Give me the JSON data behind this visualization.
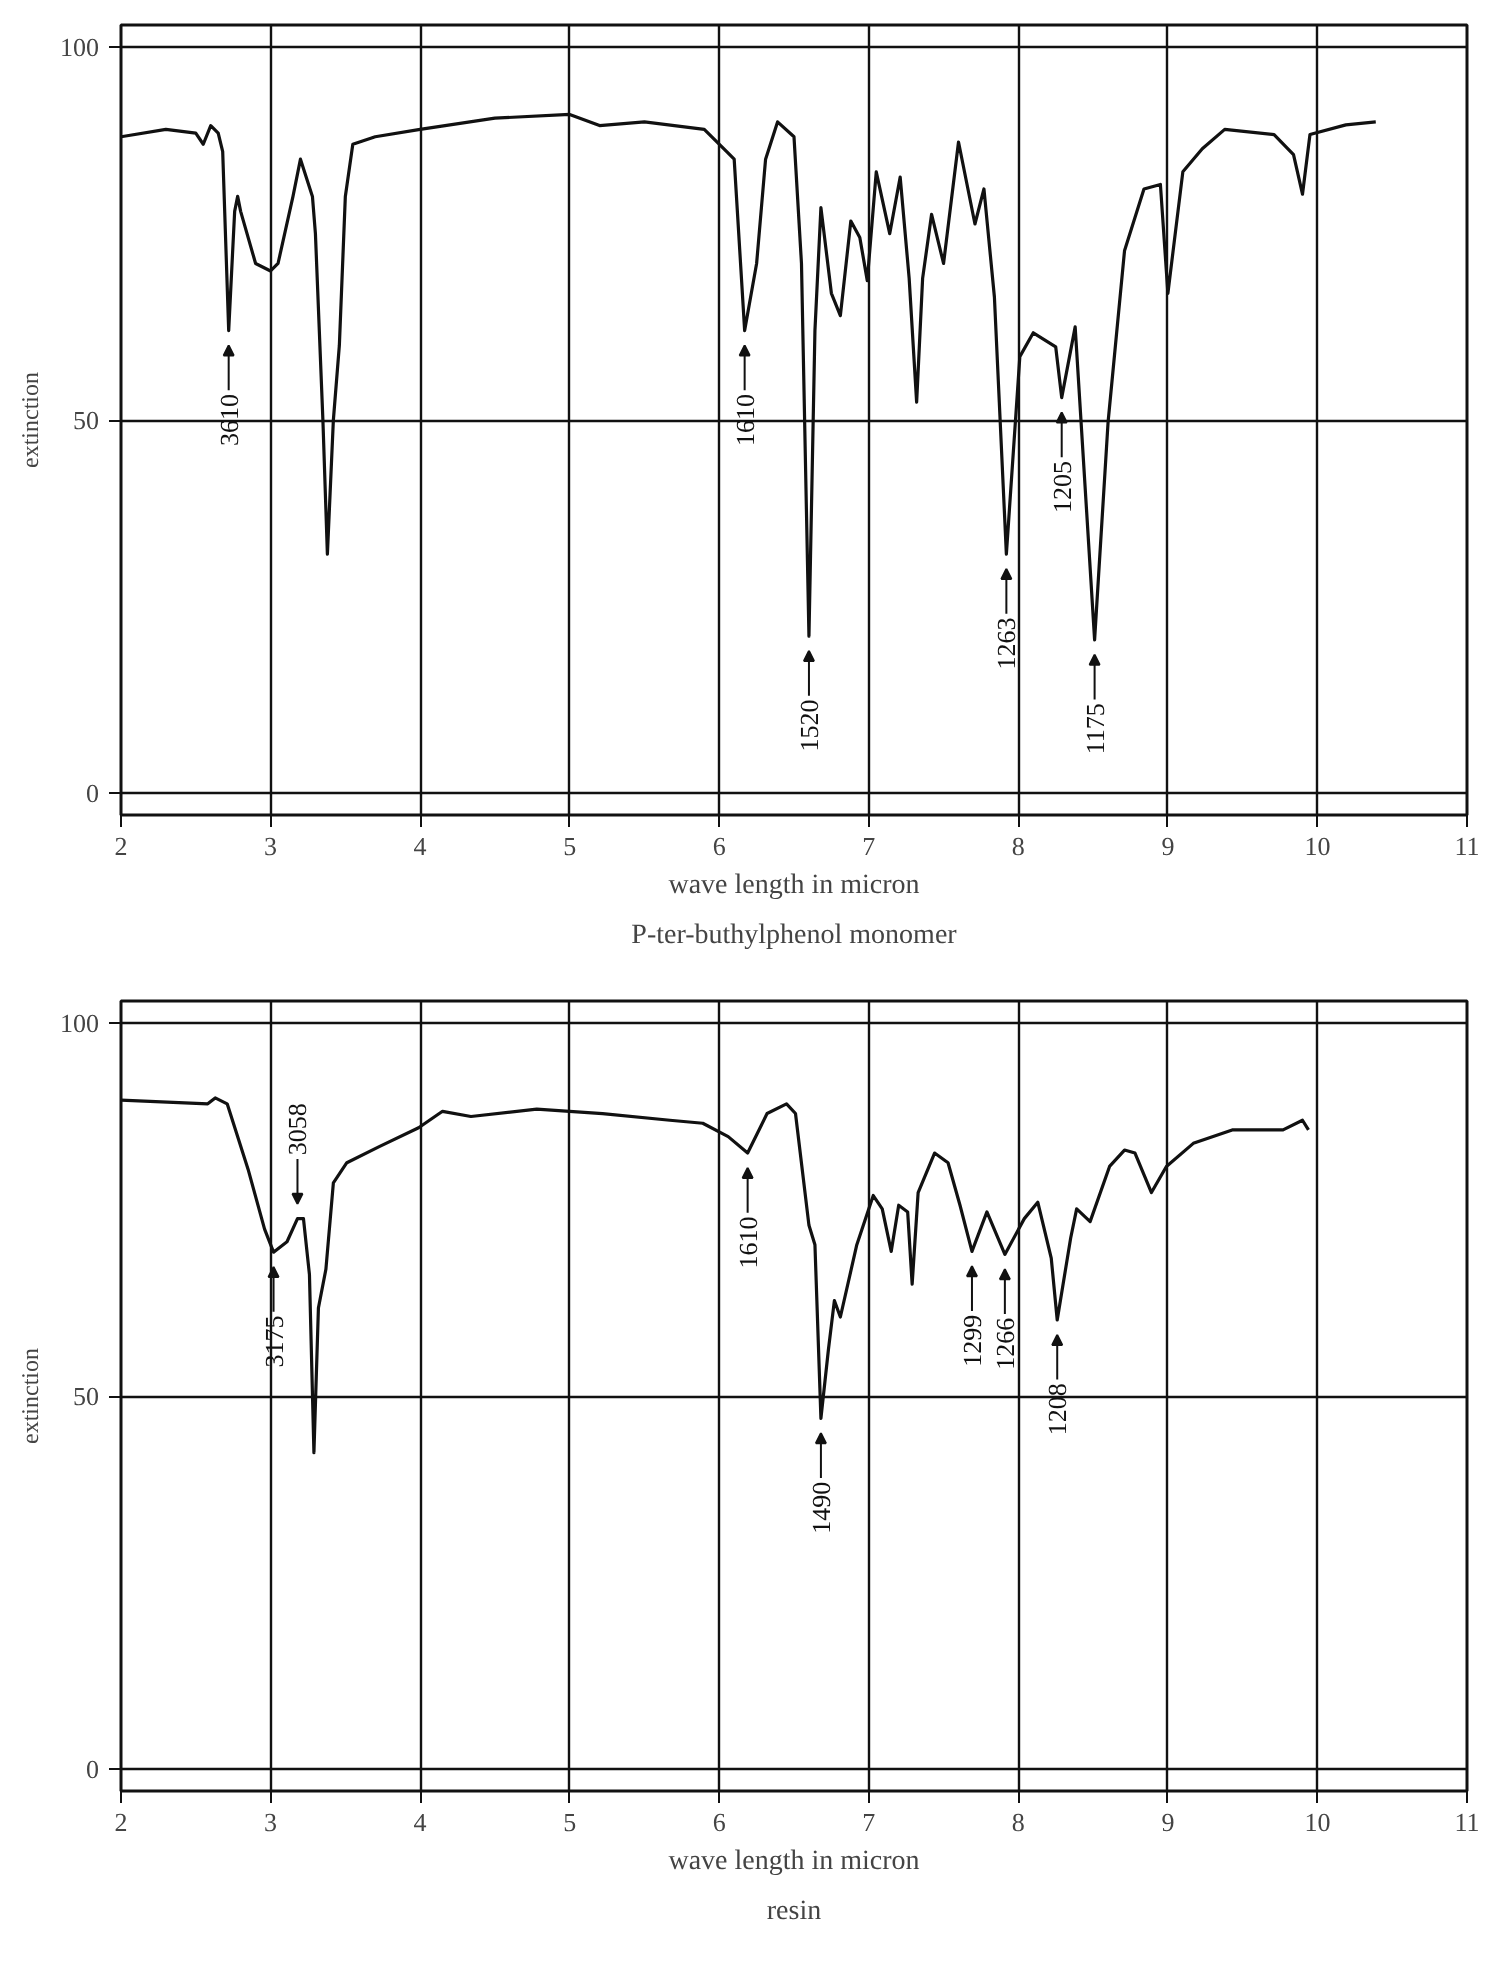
{
  "chart_data": [
    {
      "type": "line",
      "title": "P-ter-buthylphenol monomer",
      "xlabel": "wave length in micron",
      "ylabel": "extinction",
      "xlim": [
        2,
        11
      ],
      "ylim": [
        -3,
        103
      ],
      "xticks": [
        2,
        3,
        4,
        5,
        6,
        7,
        8,
        9,
        10,
        11
      ],
      "yticks": [
        0,
        50,
        100
      ],
      "grid": true,
      "marker": "none",
      "line_style": "solid",
      "series": [
        {
          "color": "#111111",
          "x": [
            2.0,
            2.3,
            2.5,
            2.55,
            2.6,
            2.65,
            2.68,
            2.72,
            2.76,
            2.78,
            2.8,
            2.9,
            3.0,
            3.05,
            3.15,
            3.2,
            3.28,
            3.3,
            3.35,
            3.38,
            3.42,
            3.46,
            3.5,
            3.55,
            3.7,
            4.0,
            4.5,
            5.0,
            5.2,
            5.5,
            5.9,
            6.05,
            6.1,
            6.17,
            6.25,
            6.31,
            6.39,
            6.5,
            6.55,
            6.6,
            6.64,
            6.68,
            6.75,
            6.81,
            6.88,
            6.94,
            6.99,
            7.05,
            7.14,
            7.21,
            7.27,
            7.32,
            7.36,
            7.42,
            7.5,
            7.6,
            7.71,
            7.77,
            7.84,
            7.92,
            8.01,
            8.1,
            8.25,
            8.29,
            8.38,
            8.51,
            8.6,
            8.71,
            8.84,
            8.95,
            9.0,
            9.1,
            9.23,
            9.38,
            9.71,
            9.84,
            9.9,
            9.95,
            10.19,
            10.39
          ],
          "values": [
            88,
            89,
            88.5,
            87,
            89.5,
            88.5,
            86,
            62,
            78,
            80,
            78,
            71,
            70,
            71,
            80,
            85,
            80,
            75,
            50,
            32,
            50,
            60,
            80,
            87,
            88,
            89,
            90.5,
            91,
            89.5,
            90,
            89,
            86,
            85,
            62,
            71,
            85,
            90,
            88,
            71,
            21,
            62,
            78.5,
            67,
            64,
            76.7,
            74.5,
            68.7,
            83.3,
            75,
            82.6,
            69,
            52.4,
            69,
            77.6,
            71,
            87.3,
            76.3,
            81,
            66.5,
            32,
            58.5,
            61.7,
            59.8,
            53,
            62.5,
            20.5,
            49.7,
            72.7,
            81,
            81.6,
            67,
            83.3,
            86.4,
            89,
            88.3,
            85.6,
            80.3,
            88.3,
            89.6,
            90
          ]
        }
      ],
      "annotations": [
        {
          "text": "3610",
          "x": 2.72,
          "y": 62
        },
        {
          "text": "1610",
          "x": 6.17,
          "y": 62
        },
        {
          "text": "1520",
          "x": 6.6,
          "y": 21
        },
        {
          "text": "1263",
          "x": 7.92,
          "y": 32
        },
        {
          "text": "1205",
          "x": 8.29,
          "y": 53
        },
        {
          "text": "1175",
          "x": 8.51,
          "y": 20.5
        }
      ]
    },
    {
      "type": "line",
      "title": "resin",
      "xlabel": "wave length in micron",
      "ylabel": "extinction",
      "xlim": [
        2,
        11
      ],
      "ylim": [
        -3,
        103
      ],
      "xticks": [
        2,
        3,
        4,
        5,
        6,
        7,
        8,
        9,
        10,
        11
      ],
      "yticks": [
        0,
        50,
        100
      ],
      "grid": true,
      "marker": "none",
      "line_style": "solid",
      "series": [
        {
          "color": "#111111",
          "x": [
            2.0,
            2.58,
            2.63,
            2.71,
            2.85,
            2.96,
            3.02,
            3.11,
            3.18,
            3.22,
            3.26,
            3.29,
            3.32,
            3.37,
            3.42,
            3.51,
            3.73,
            3.99,
            4.15,
            4.34,
            4.78,
            5.22,
            5.67,
            5.89,
            6.06,
            6.19,
            6.32,
            6.45,
            6.51,
            6.6,
            6.64,
            6.68,
            6.73,
            6.77,
            6.81,
            6.92,
            7.03,
            7.09,
            7.15,
            7.2,
            7.26,
            7.29,
            7.33,
            7.44,
            7.53,
            7.61,
            7.69,
            7.79,
            7.91,
            8.04,
            8.13,
            8.22,
            8.26,
            8.35,
            8.39,
            8.48,
            8.61,
            8.71,
            8.78,
            8.89,
            8.99,
            9.17,
            9.43,
            9.77,
            9.9,
            9.94
          ],
          "values": [
            89.7,
            89.2,
            90,
            89.2,
            80.4,
            72.4,
            69.3,
            70.7,
            73.8,
            73.8,
            66.3,
            42.4,
            61.8,
            67,
            78.6,
            81.3,
            83.5,
            86,
            88.2,
            87.5,
            88.5,
            87.9,
            87,
            86.6,
            84.8,
            82.6,
            87.9,
            89.2,
            87.9,
            72.9,
            70.3,
            47,
            56.2,
            62.8,
            60.6,
            70.3,
            76.9,
            75.1,
            69.4,
            75.6,
            74.7,
            65,
            77.3,
            82.6,
            81.3,
            75.6,
            69.4,
            74.7,
            69,
            73.8,
            76,
            68.5,
            60.2,
            71.2,
            75.1,
            73.4,
            80.8,
            83,
            82.6,
            77.3,
            80.8,
            83.9,
            85.7,
            85.7,
            87,
            85.7
          ]
        }
      ],
      "annotations": [
        {
          "text": "3175",
          "x": 3.02,
          "y": 69.3
        },
        {
          "text": "3058",
          "x": 3.18,
          "y": 73.8
        },
        {
          "text": "1610",
          "x": 6.19,
          "y": 82.6
        },
        {
          "text": "1490",
          "x": 6.68,
          "y": 47
        },
        {
          "text": "1299",
          "x": 7.69,
          "y": 69.4
        },
        {
          "text": "1266",
          "x": 7.91,
          "y": 69
        },
        {
          "text": "1208",
          "x": 8.26,
          "y": 60.2
        }
      ]
    }
  ]
}
